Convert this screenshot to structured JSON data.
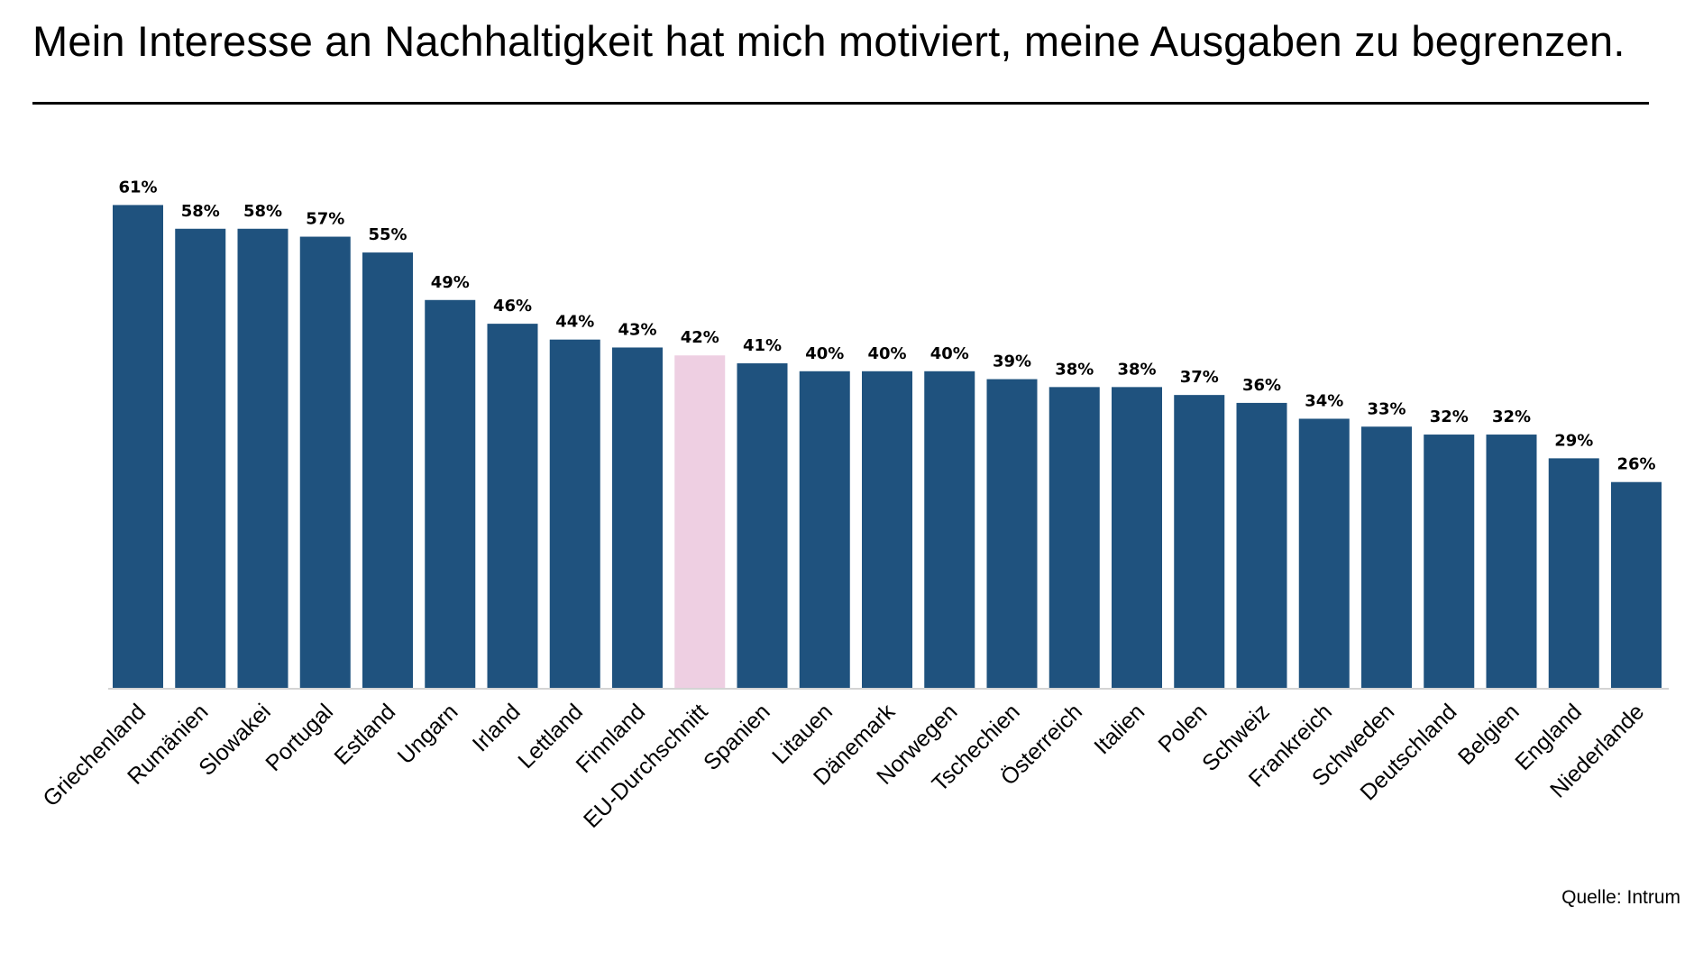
{
  "title": "Mein Interesse an Nachhaltigkeit hat mich motiviert, meine Ausgaben zu begrenzen.",
  "source": "Quelle: Intrum",
  "chart_data": {
    "type": "bar",
    "title": "Mein Interesse an Nachhaltigkeit hat mich motiviert, meine Ausgaben zu begrenzen.",
    "xlabel": "",
    "ylabel": "",
    "unit": "%",
    "ylim": [
      0,
      61
    ],
    "grid": false,
    "legend": "none",
    "categories": [
      "Griechenland",
      "Rumänien",
      "Slowakei",
      "Portugal",
      "Estland",
      "Ungarn",
      "Irland",
      "Lettland",
      "Finnland",
      "EU-Durchschnitt",
      "Spanien",
      "Litauen",
      "Dänemark",
      "Norwegen",
      "Tschechien",
      "Österreich",
      "Italien",
      "Polen",
      "Schweiz",
      "Frankreich",
      "Schweden",
      "Deutschland",
      "Belgien",
      "England",
      "Niederlande"
    ],
    "values": [
      61,
      58,
      58,
      57,
      55,
      49,
      46,
      44,
      43,
      42,
      41,
      40,
      40,
      40,
      39,
      38,
      38,
      37,
      36,
      34,
      33,
      32,
      32,
      29,
      26
    ],
    "value_labels": [
      "61%",
      "58%",
      "58%",
      "57%",
      "55%",
      "49%",
      "46%",
      "44%",
      "43%",
      "42%",
      "41%",
      "40%",
      "40%",
      "40%",
      "39%",
      "38%",
      "38%",
      "37%",
      "36%",
      "34%",
      "33%",
      "32%",
      "32%",
      "29%",
      "26%"
    ],
    "highlight_category": "EU-Durchschnitt",
    "colors": {
      "bar": "#1f527e",
      "highlight": "#eecfe2",
      "baseline": "#d4d4d4"
    }
  }
}
